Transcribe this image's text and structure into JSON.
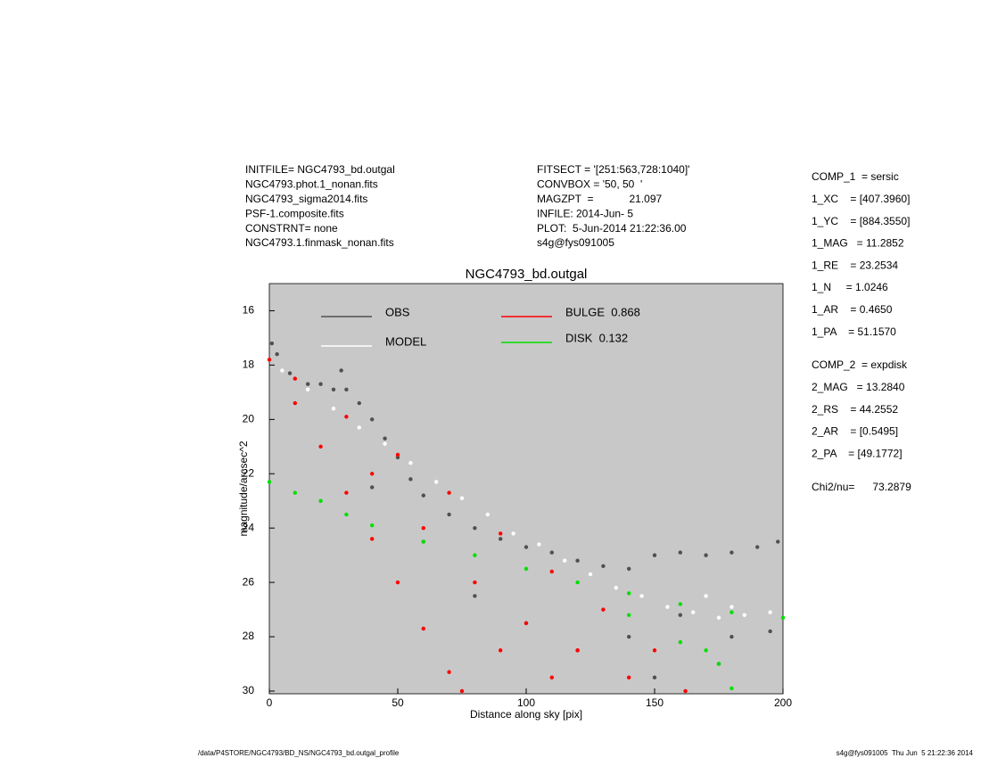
{
  "header": {
    "left": [
      "INITFILE= NGC4793_bd.outgal",
      "NGC4793.phot.1_nonan.fits",
      "NGC4793_sigma2014.fits",
      "PSF-1.composite.fits",
      "CONSTRNT= none",
      "NGC4793.1.finmask_nonan.fits"
    ],
    "middle": [
      "FITSECT = '[251:563,728:1040]'",
      "CONVBOX = '50, 50  '",
      "MAGZPT  =            21.097",
      "INFILE: 2014-Jun- 5",
      "PLOT:  5-Jun-2014 21:22:36.00",
      "s4g@fys091005"
    ]
  },
  "right_panel": {
    "comp1": [
      "COMP_1  = sersic",
      "1_XC    = [407.3960]",
      "1_YC    = [884.3550]",
      "1_MAG   = 11.2852",
      "1_RE    = 23.2534",
      "1_N     = 1.0246",
      "1_AR    = 0.4650",
      "1_PA    = 51.1570"
    ],
    "comp2": [
      "COMP_2  = expdisk",
      "2_MAG   = 13.2840",
      "2_RS    = 44.2552",
      "2_AR    = [0.5495]",
      "2_PA    = [49.1772]"
    ],
    "chi": "Chi2/nu=      73.2879"
  },
  "footer": {
    "left": "/data/P4STORE/NGC4793/BD_NS/NGC4793_bd.outgal_profile",
    "right": "s4g@fys091005  Thu Jun  5 21:22:36 2014"
  },
  "chart_data": {
    "type": "scatter",
    "title": "NGC4793_bd.outgal",
    "x_label": "Distance along sky [pix]",
    "y_label": "magnitude/arcsec^2",
    "xlim": [
      0,
      200
    ],
    "ylim": [
      15,
      30.1
    ],
    "y_inverted": true,
    "xticks": [
      0,
      50,
      100,
      150,
      200
    ],
    "yticks": [
      16,
      18,
      20,
      22,
      24,
      26,
      28,
      30
    ],
    "background": "#c8c8c8",
    "series": [
      {
        "name": "OBS",
        "color": "#505050",
        "x": [
          1,
          3,
          8,
          15,
          20,
          25,
          28,
          30,
          35,
          40,
          45,
          50,
          55,
          60,
          70,
          80,
          90,
          100,
          110,
          120,
          130,
          140,
          150,
          160,
          170,
          180,
          190,
          198,
          40,
          60,
          80,
          100,
          120,
          140,
          160,
          180,
          195,
          150,
          175
        ],
        "y": [
          17.2,
          17.6,
          18.3,
          18.7,
          18.7,
          18.9,
          18.2,
          18.9,
          19.4,
          20.0,
          20.7,
          21.4,
          22.2,
          22.8,
          23.5,
          24.0,
          24.4,
          24.7,
          24.9,
          25.2,
          25.4,
          25.5,
          25.0,
          24.9,
          25.0,
          24.9,
          24.7,
          24.5,
          22.5,
          24.5,
          26.5,
          27.5,
          28.5,
          28.0,
          27.2,
          28.0,
          27.8,
          29.5,
          29.0
        ]
      },
      {
        "name": "MODEL",
        "color": "#ffffff",
        "x": [
          5,
          15,
          25,
          35,
          45,
          55,
          65,
          75,
          85,
          95,
          105,
          115,
          125,
          135,
          145,
          155,
          165,
          175,
          185,
          195,
          170,
          180
        ],
        "y": [
          18.2,
          18.9,
          19.6,
          20.3,
          20.9,
          21.6,
          22.3,
          22.9,
          23.5,
          24.2,
          24.6,
          25.2,
          25.7,
          26.2,
          26.5,
          26.9,
          27.1,
          27.3,
          27.2,
          27.1,
          26.5,
          26.9
        ]
      },
      {
        "name": "BULGE  0.868",
        "color": "#ff0000",
        "x": [
          0,
          10,
          30,
          50,
          70,
          90,
          110,
          130,
          150,
          162,
          10,
          20,
          30,
          40,
          50,
          60,
          70,
          75,
          40,
          60,
          80,
          100,
          120,
          140,
          90,
          110
        ],
        "y": [
          17.8,
          18.5,
          19.9,
          21.3,
          22.7,
          24.2,
          25.6,
          27.0,
          28.5,
          30.0,
          19.4,
          21.0,
          22.7,
          24.4,
          26.0,
          27.7,
          29.3,
          30.0,
          22.0,
          24.0,
          26.0,
          27.5,
          28.5,
          29.5,
          28.5,
          29.5
        ]
      },
      {
        "name": "DISK  0.132",
        "color": "#00e000",
        "x": [
          0,
          10,
          20,
          30,
          40,
          60,
          80,
          100,
          120,
          140,
          160,
          180,
          200,
          140,
          160,
          175,
          180,
          170
        ],
        "y": [
          22.3,
          22.7,
          23.0,
          23.5,
          23.9,
          24.5,
          25.0,
          25.5,
          26.0,
          26.4,
          26.8,
          27.1,
          27.3,
          27.2,
          28.2,
          29.0,
          29.9,
          28.5
        ]
      }
    ]
  }
}
